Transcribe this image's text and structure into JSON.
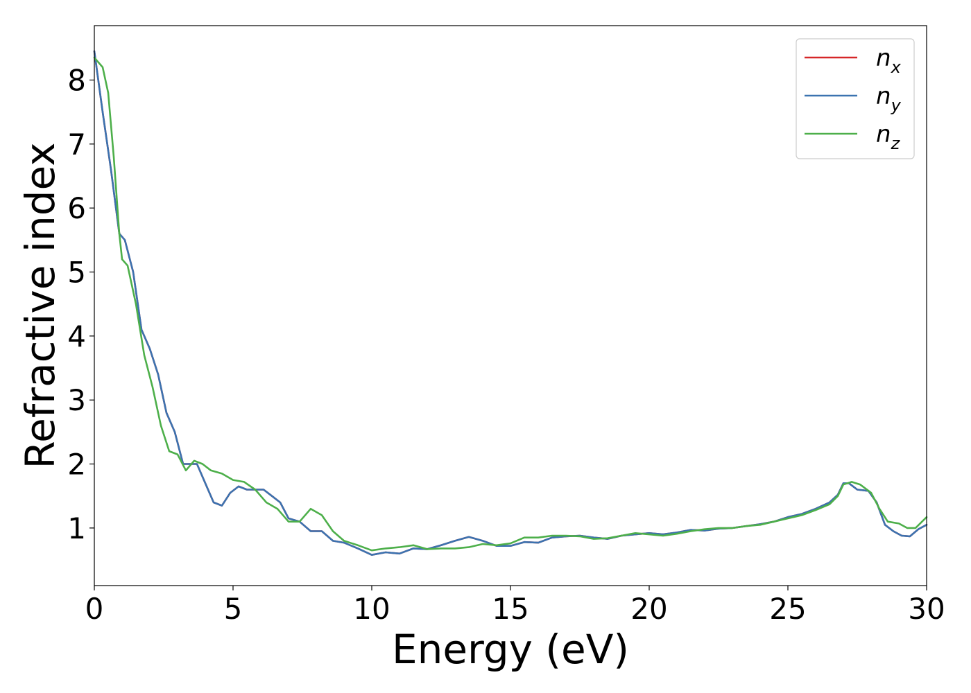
{
  "chart_data": {
    "type": "line",
    "title": "",
    "xlabel": "Energy (eV)",
    "ylabel": "Refractive index",
    "xlim": [
      0,
      30
    ],
    "ylim": [
      0.1,
      8.85
    ],
    "xticks": [
      0,
      5,
      10,
      15,
      20,
      25,
      30
    ],
    "yticks": [
      1,
      2,
      3,
      4,
      5,
      6,
      7,
      8
    ],
    "grid": false,
    "legend_position": "top-right",
    "colors": {
      "nx": "#d62728",
      "ny": "#3b73b0",
      "nz": "#4daf4a"
    },
    "series": [
      {
        "name": "n_x",
        "base": "n",
        "sub": "x",
        "color": "#d62728",
        "x": [
          0,
          0.3,
          0.6,
          0.9,
          1.1,
          1.4,
          1.7,
          2.0,
          2.3,
          2.6,
          2.9,
          3.2,
          3.4,
          3.7,
          4.0,
          4.3,
          4.6,
          4.9,
          5.2,
          5.5,
          5.8,
          6.1,
          6.4,
          6.7,
          7.0,
          7.4,
          7.8,
          8.2,
          8.6,
          9.0,
          9.5,
          10.0,
          10.5,
          11.0,
          11.5,
          12.0,
          12.5,
          13.0,
          13.5,
          14.0,
          14.5,
          15.0,
          15.5,
          16.0,
          16.5,
          17.0,
          17.5,
          18.0,
          18.5,
          19.0,
          19.5,
          20.0,
          20.5,
          21.0,
          21.5,
          22.0,
          22.5,
          23.0,
          23.5,
          24.0,
          24.5,
          25.0,
          25.5,
          26.0,
          26.5,
          26.8,
          27.0,
          27.2,
          27.5,
          27.9,
          28.2,
          28.5,
          28.8,
          29.1,
          29.4,
          29.7,
          30.0
        ],
        "y": [
          8.45,
          7.5,
          6.6,
          5.6,
          5.5,
          5.0,
          4.1,
          3.8,
          3.4,
          2.8,
          2.5,
          2.0,
          2.0,
          2.0,
          1.7,
          1.4,
          1.35,
          1.55,
          1.65,
          1.6,
          1.6,
          1.6,
          1.5,
          1.4,
          1.15,
          1.1,
          0.95,
          0.95,
          0.8,
          0.77,
          0.68,
          0.58,
          0.62,
          0.6,
          0.68,
          0.67,
          0.73,
          0.8,
          0.86,
          0.8,
          0.72,
          0.72,
          0.78,
          0.77,
          0.85,
          0.87,
          0.88,
          0.85,
          0.83,
          0.88,
          0.9,
          0.92,
          0.9,
          0.93,
          0.97,
          0.96,
          0.99,
          1.0,
          1.03,
          1.06,
          1.1,
          1.17,
          1.22,
          1.3,
          1.4,
          1.52,
          1.7,
          1.7,
          1.6,
          1.58,
          1.4,
          1.05,
          0.95,
          0.88,
          0.87,
          0.98,
          1.05
        ]
      },
      {
        "name": "n_y",
        "base": "n",
        "sub": "y",
        "color": "#3b73b0",
        "x": [
          0,
          0.3,
          0.6,
          0.9,
          1.1,
          1.4,
          1.7,
          2.0,
          2.3,
          2.6,
          2.9,
          3.2,
          3.4,
          3.7,
          4.0,
          4.3,
          4.6,
          4.9,
          5.2,
          5.5,
          5.8,
          6.1,
          6.4,
          6.7,
          7.0,
          7.4,
          7.8,
          8.2,
          8.6,
          9.0,
          9.5,
          10.0,
          10.5,
          11.0,
          11.5,
          12.0,
          12.5,
          13.0,
          13.5,
          14.0,
          14.5,
          15.0,
          15.5,
          16.0,
          16.5,
          17.0,
          17.5,
          18.0,
          18.5,
          19.0,
          19.5,
          20.0,
          20.5,
          21.0,
          21.5,
          22.0,
          22.5,
          23.0,
          23.5,
          24.0,
          24.5,
          25.0,
          25.5,
          26.0,
          26.5,
          26.8,
          27.0,
          27.2,
          27.5,
          27.9,
          28.2,
          28.5,
          28.8,
          29.1,
          29.4,
          29.7,
          30.0
        ],
        "y": [
          8.45,
          7.5,
          6.6,
          5.6,
          5.5,
          5.0,
          4.1,
          3.8,
          3.4,
          2.8,
          2.5,
          2.0,
          2.0,
          2.0,
          1.7,
          1.4,
          1.35,
          1.55,
          1.65,
          1.6,
          1.6,
          1.6,
          1.5,
          1.4,
          1.15,
          1.1,
          0.95,
          0.95,
          0.8,
          0.77,
          0.68,
          0.58,
          0.62,
          0.6,
          0.68,
          0.67,
          0.73,
          0.8,
          0.86,
          0.8,
          0.72,
          0.72,
          0.78,
          0.77,
          0.85,
          0.87,
          0.88,
          0.85,
          0.83,
          0.88,
          0.9,
          0.92,
          0.9,
          0.93,
          0.97,
          0.96,
          0.99,
          1.0,
          1.03,
          1.06,
          1.1,
          1.17,
          1.22,
          1.3,
          1.4,
          1.52,
          1.7,
          1.7,
          1.6,
          1.58,
          1.4,
          1.05,
          0.95,
          0.88,
          0.87,
          0.98,
          1.05
        ]
      },
      {
        "name": "n_z",
        "base": "n",
        "sub": "z",
        "color": "#4daf4a",
        "x": [
          0,
          0.3,
          0.5,
          0.7,
          0.9,
          1.0,
          1.2,
          1.5,
          1.8,
          2.1,
          2.4,
          2.7,
          3.0,
          3.3,
          3.6,
          3.9,
          4.2,
          4.6,
          5.0,
          5.4,
          5.8,
          6.2,
          6.6,
          7.0,
          7.4,
          7.8,
          8.2,
          8.6,
          9.0,
          9.5,
          10.0,
          10.5,
          11.0,
          11.5,
          12.0,
          12.5,
          13.0,
          13.5,
          14.0,
          14.5,
          15.0,
          15.5,
          16.0,
          16.5,
          17.0,
          17.5,
          18.0,
          18.5,
          19.0,
          19.5,
          20.0,
          20.5,
          21.0,
          21.5,
          22.0,
          22.5,
          23.0,
          23.5,
          24.0,
          24.5,
          25.0,
          25.5,
          26.0,
          26.5,
          26.8,
          27.0,
          27.3,
          27.6,
          28.0,
          28.3,
          28.6,
          29.0,
          29.3,
          29.6,
          30.0
        ],
        "y": [
          8.35,
          8.2,
          7.8,
          6.8,
          5.6,
          5.2,
          5.1,
          4.5,
          3.7,
          3.2,
          2.6,
          2.2,
          2.15,
          1.9,
          2.05,
          2.0,
          1.9,
          1.85,
          1.75,
          1.72,
          1.6,
          1.4,
          1.3,
          1.1,
          1.1,
          1.3,
          1.2,
          0.95,
          0.8,
          0.73,
          0.65,
          0.68,
          0.7,
          0.73,
          0.67,
          0.68,
          0.68,
          0.7,
          0.75,
          0.73,
          0.76,
          0.85,
          0.85,
          0.88,
          0.88,
          0.87,
          0.83,
          0.84,
          0.88,
          0.92,
          0.9,
          0.88,
          0.91,
          0.95,
          0.98,
          1.0,
          1.0,
          1.03,
          1.05,
          1.1,
          1.15,
          1.2,
          1.28,
          1.37,
          1.5,
          1.68,
          1.72,
          1.68,
          1.55,
          1.3,
          1.1,
          1.07,
          1.0,
          1.0,
          1.17
        ]
      }
    ]
  }
}
